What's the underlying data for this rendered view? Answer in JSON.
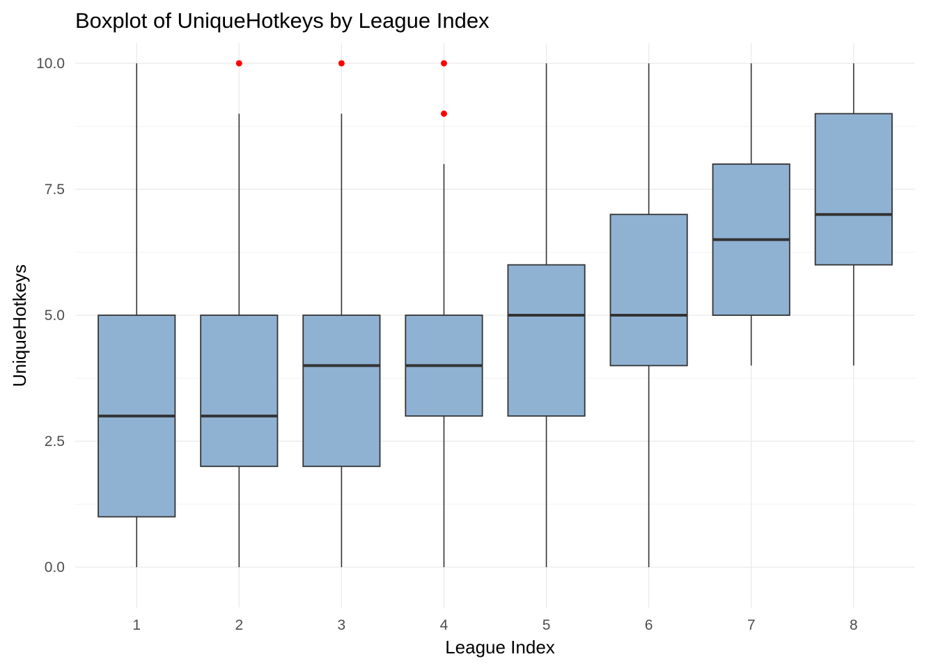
{
  "chart_data": {
    "type": "boxplot",
    "title": "Boxplot of UniqueHotkeys by League Index",
    "xlabel": "League Index",
    "ylabel": "UniqueHotkeys",
    "ylim": [
      -0.8,
      10.4
    ],
    "yticks": [
      0,
      2.5,
      5,
      7.5,
      10
    ],
    "ytick_labels": [
      "0.0",
      "2.5",
      "5.0",
      "7.5",
      "10.0"
    ],
    "categories": [
      "1",
      "2",
      "3",
      "4",
      "5",
      "6",
      "7",
      "8"
    ],
    "boxes": [
      {
        "category": "1",
        "whisker_low": 0,
        "q1": 1,
        "median": 3,
        "q3": 5,
        "whisker_high": 10,
        "outliers": []
      },
      {
        "category": "2",
        "whisker_low": 0,
        "q1": 2,
        "median": 3,
        "q3": 5,
        "whisker_high": 9,
        "outliers": [
          10
        ]
      },
      {
        "category": "3",
        "whisker_low": 0,
        "q1": 2,
        "median": 4,
        "q3": 5,
        "whisker_high": 9,
        "outliers": [
          10
        ]
      },
      {
        "category": "4",
        "whisker_low": 0,
        "q1": 3,
        "median": 4,
        "q3": 5,
        "whisker_high": 8,
        "outliers": [
          10,
          9
        ]
      },
      {
        "category": "5",
        "whisker_low": 0,
        "q1": 3,
        "median": 5,
        "q3": 6,
        "whisker_high": 10,
        "outliers": []
      },
      {
        "category": "6",
        "whisker_low": 0,
        "q1": 4,
        "median": 5,
        "q3": 7,
        "whisker_high": 10,
        "outliers": []
      },
      {
        "category": "7",
        "whisker_low": 4,
        "q1": 5,
        "median": 6.5,
        "q3": 8,
        "whisker_high": 10,
        "outliers": []
      },
      {
        "category": "8",
        "whisker_low": 4,
        "q1": 6,
        "median": 7,
        "q3": 9,
        "whisker_high": 10,
        "outliers": []
      }
    ],
    "colors": {
      "box_fill": "#8fb2d3",
      "box_stroke": "#333333",
      "median": "#333333",
      "outlier": "#ff0000"
    },
    "grid": true,
    "legend": "none"
  }
}
